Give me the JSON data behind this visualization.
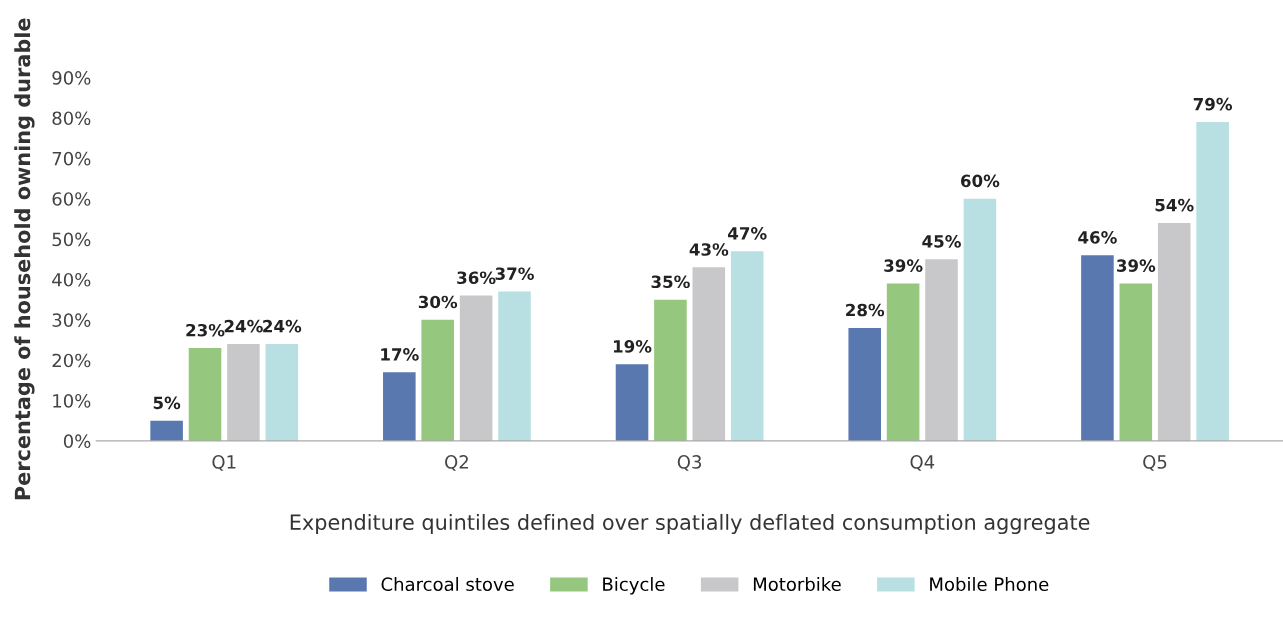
{
  "chart_data": {
    "type": "bar",
    "xlabel": "Expenditure quintiles defined over spatially deflated consumption aggregate",
    "ylabel": "Percentage of household owning durable",
    "categories": [
      "Q1",
      "Q2",
      "Q3",
      "Q4",
      "Q5"
    ],
    "series": [
      {
        "name": "Charcoal stove",
        "color": "#5a78b0",
        "values": [
          5,
          17,
          19,
          28,
          46
        ],
        "value_labels": [
          "5%",
          "17%",
          "19%",
          "28%",
          "46%"
        ]
      },
      {
        "name": "Bicycle",
        "color": "#95c77e",
        "values": [
          23,
          30,
          35,
          39,
          39
        ],
        "value_labels": [
          "23%",
          "30%",
          "35%",
          "39%",
          "39%"
        ]
      },
      {
        "name": "Motorbike",
        "color": "#c8c8ca",
        "values": [
          24,
          36,
          43,
          45,
          54
        ],
        "value_labels": [
          "24%",
          "36%",
          "43%",
          "45%",
          "54%"
        ]
      },
      {
        "name": "Mobile Phone",
        "color": "#b8e0e2",
        "values": [
          24,
          37,
          47,
          60,
          79
        ],
        "value_labels": [
          "24%",
          "37%",
          "47%",
          "60%",
          "79%"
        ]
      }
    ],
    "ylim": [
      0,
      90
    ],
    "yticks": [
      {
        "value": 0,
        "label": "0%"
      },
      {
        "value": 10,
        "label": "10%"
      },
      {
        "value": 20,
        "label": "20%"
      },
      {
        "value": 30,
        "label": "30%"
      },
      {
        "value": 40,
        "label": "40%"
      },
      {
        "value": 50,
        "label": "50%"
      },
      {
        "value": 60,
        "label": "60%"
      },
      {
        "value": 70,
        "label": "70%"
      },
      {
        "value": 80,
        "label": "80%"
      },
      {
        "value": 90,
        "label": "90%"
      }
    ],
    "grid": false,
    "legend": "bottom"
  }
}
